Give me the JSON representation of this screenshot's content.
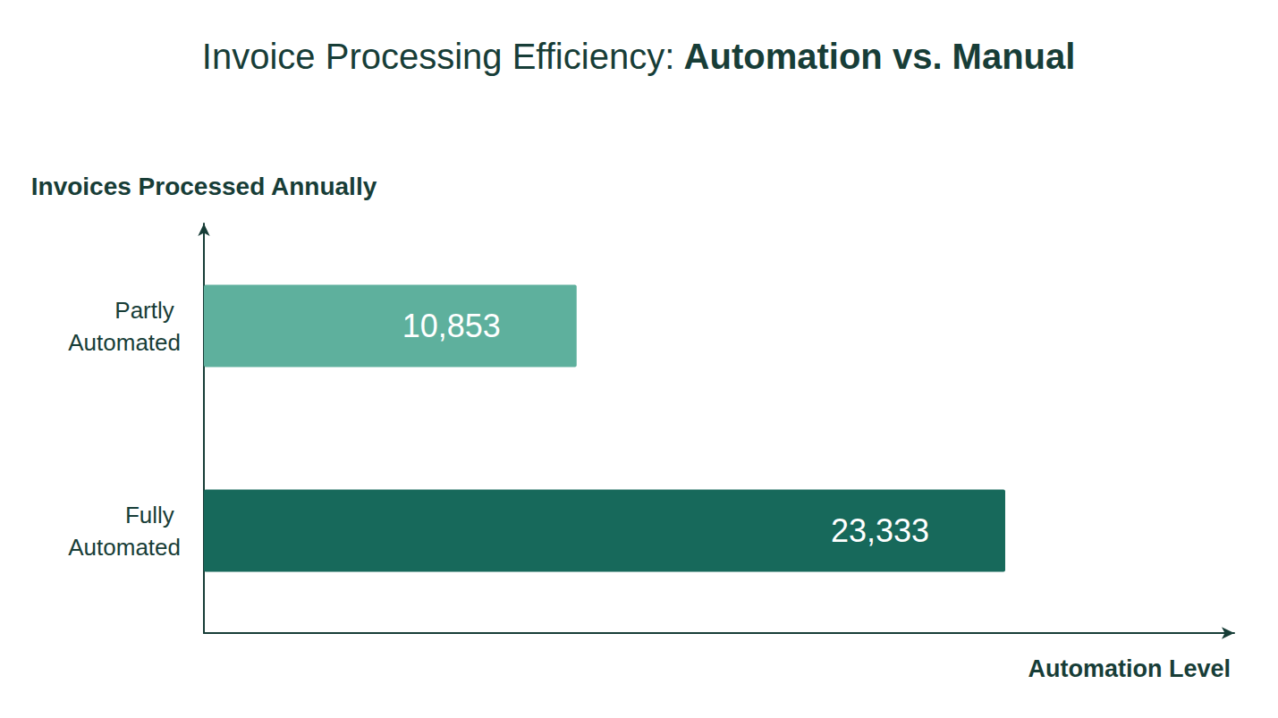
{
  "chart_data": {
    "type": "bar",
    "title": "Invoice Processing Efficiency: Automation vs. Manual",
    "orientation": "horizontal",
    "xlabel": "Automation Level",
    "ylabel": "Invoices Processed Annually",
    "categories": [
      "Fully Automated",
      "Partly Automated"
    ],
    "values": [
      23333,
      10853
    ],
    "value_labels": [
      "23,333",
      "10,853"
    ],
    "colors": [
      "#17695b",
      "#5eb09d"
    ],
    "xlim": [
      0,
      30000
    ],
    "grid": false,
    "data_labels": true,
    "tick_labels": "y"
  }
}
